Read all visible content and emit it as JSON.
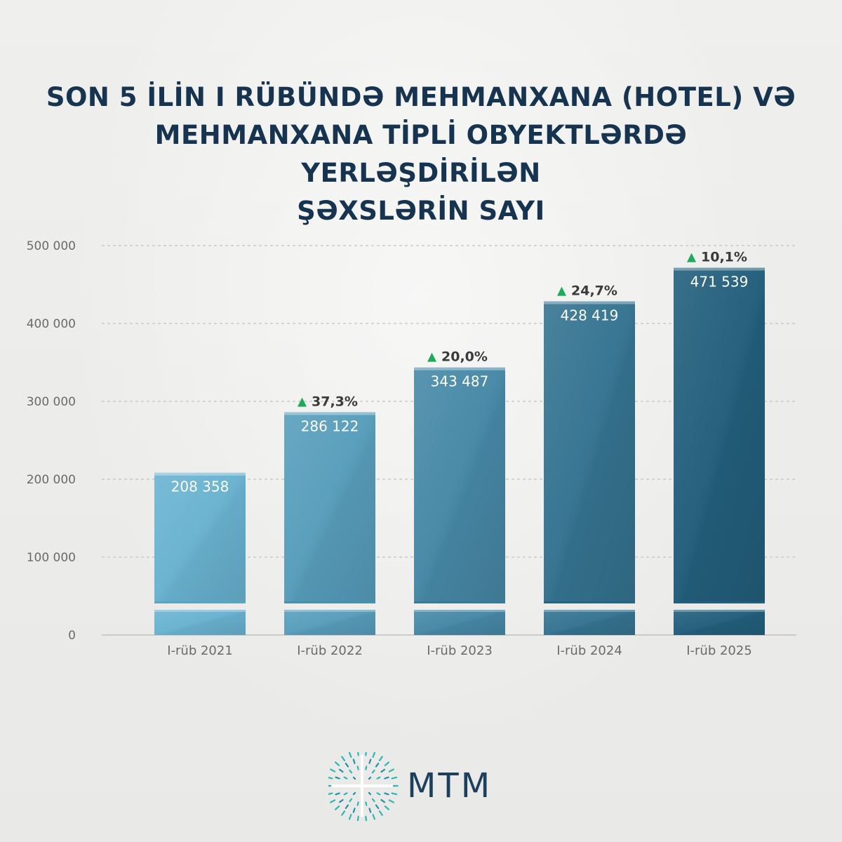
{
  "title_lines": [
    "SON 5 İLİN I RÜBÜNDƏ MEHMANXANA (HOTEL) VƏ",
    "MEHMANXANA TİPLİ OBYEKTLƏRDƏ YERLƏŞDİRİLƏN",
    "ŞƏXSLƏRİN SAYI"
  ],
  "logo": {
    "text": "MTM",
    "icon": "mtm-logo-icon"
  },
  "colors": {
    "title": "#16344f",
    "grid": "#b8b8b8",
    "axis_text": "#6a6a6a",
    "up_arrow": "#1faa5a",
    "bar_light": "#6ab3d1",
    "bar_dark": "#235f7c",
    "logo_primary": "#1d3f5e",
    "logo_accent": "#2bb8b0"
  },
  "chart_data": {
    "type": "bar",
    "title": "",
    "xlabel": "",
    "ylabel": "",
    "categories": [
      "I-rüb 2021",
      "I-rüb 2022",
      "I-rüb 2023",
      "I-rüb 2024",
      "I-rüb 2025"
    ],
    "values": [
      208358,
      286122,
      343487,
      428419,
      471539
    ],
    "value_labels": [
      "208 358",
      "286 122",
      "343 487",
      "428 419",
      "471 539"
    ],
    "growth": [
      null,
      "37,3%",
      "20,0%",
      "24,7%",
      "10,1%"
    ],
    "growth_arrow": "▲",
    "ylim": [
      0,
      500000
    ],
    "yticks": [
      0,
      100000,
      200000,
      300000,
      400000,
      500000
    ],
    "ytick_labels": [
      "0",
      "100 000",
      "200 000",
      "300 000",
      "400 000",
      "500 000"
    ],
    "axis_break": true,
    "grid": true,
    "legend": "none"
  }
}
